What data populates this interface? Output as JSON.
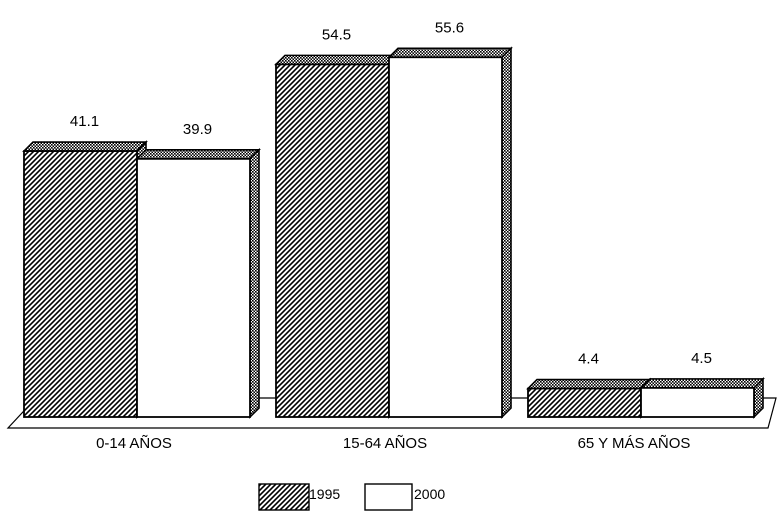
{
  "chart_data": {
    "type": "bar",
    "categories": [
      "0-14 AÑOS",
      "15-64 AÑOS",
      "65 Y MÁS AÑOS"
    ],
    "series": [
      {
        "name": "1995",
        "values": [
          41.1,
          54.5,
          4.4
        ],
        "value_labels": [
          "41.1",
          "54.5",
          "4.4"
        ],
        "pattern": "diagonal-hatch"
      },
      {
        "name": "2000",
        "values": [
          39.9,
          55.6,
          4.5
        ],
        "value_labels": [
          "39.9",
          "55.6",
          "4.5"
        ],
        "pattern": "solid-white"
      }
    ],
    "title": "",
    "xlabel": "",
    "ylabel": "",
    "ylim": [
      0,
      60
    ],
    "grid": false,
    "legend_position": "bottom-center",
    "style": "3d"
  }
}
